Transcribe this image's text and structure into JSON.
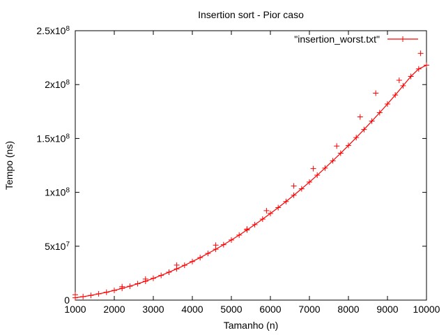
{
  "chart_data": {
    "type": "line",
    "title": "Insertion sort - Pior caso",
    "xlabel": "Tamanho (n)",
    "ylabel": "Tempo (ns)",
    "xlim": [
      1000,
      10000
    ],
    "ylim": [
      0,
      250000000
    ],
    "x_ticks": [
      {
        "value": 1000,
        "label": "1000"
      },
      {
        "value": 2000,
        "label": "2000"
      },
      {
        "value": 3000,
        "label": "3000"
      },
      {
        "value": 4000,
        "label": "4000"
      },
      {
        "value": 5000,
        "label": "5000"
      },
      {
        "value": 6000,
        "label": "6000"
      },
      {
        "value": 7000,
        "label": "7000"
      },
      {
        "value": 8000,
        "label": "8000"
      },
      {
        "value": 9000,
        "label": "9000"
      },
      {
        "value": 10000,
        "label": "10000"
      }
    ],
    "y_ticks": [
      {
        "value": 0,
        "base": "0",
        "exp": ""
      },
      {
        "value": 50000000,
        "base": "5x10",
        "exp": "7"
      },
      {
        "value": 100000000,
        "base": "1x10",
        "exp": "8"
      },
      {
        "value": 150000000,
        "base": "1.5x10",
        "exp": "8"
      },
      {
        "value": 200000000,
        "base": "2x10",
        "exp": "8"
      },
      {
        "value": 250000000,
        "base": "2.5x10",
        "exp": "8"
      }
    ],
    "grid": false,
    "legend_position": "top-right",
    "series": [
      {
        "name": "\"insertion_worst.txt\"",
        "color": "#ff0000",
        "marker": "plus",
        "x": [
          1000,
          1200,
          1400,
          1600,
          1800,
          2000,
          2200,
          2400,
          2600,
          2800,
          3000,
          3200,
          3400,
          3600,
          3800,
          4000,
          4200,
          4400,
          4600,
          4800,
          5000,
          5200,
          5400,
          5600,
          5800,
          6000,
          6200,
          6400,
          6600,
          6800,
          7000,
          7200,
          7400,
          7600,
          7800,
          8000,
          8200,
          8400,
          8600,
          8800,
          9000,
          9200,
          9400,
          9600,
          9800,
          10000
        ],
        "y": [
          2200000,
          3200000,
          4400000,
          5800000,
          7300000,
          9000000,
          10900000,
          12900000,
          15200000,
          17500000,
          20200000,
          22900000,
          25900000,
          29000000,
          32300000,
          35800000,
          39400000,
          43300000,
          47200000,
          51400000,
          55800000,
          60300000,
          65100000,
          70000000,
          75100000,
          80400000,
          85800000,
          91500000,
          97300000,
          103300000,
          109500000,
          115900000,
          122500000,
          129300000,
          136300000,
          143500000,
          150800000,
          158300000,
          166100000,
          173900000,
          182000000,
          190300000,
          198900000,
          207600000,
          214500000,
          218000000
        ]
      }
    ],
    "outliers": {
      "x": [
        1000,
        2200,
        2800,
        3600,
        4600,
        5400,
        5900,
        6600,
        7100,
        7700,
        8300,
        8700,
        9300,
        9850
      ],
      "y": [
        5000000,
        12500000,
        19500000,
        32500000,
        51000000,
        66000000,
        83000000,
        106000000,
        122000000,
        143000000,
        170000000,
        192000000,
        204000000,
        229000000
      ]
    }
  }
}
